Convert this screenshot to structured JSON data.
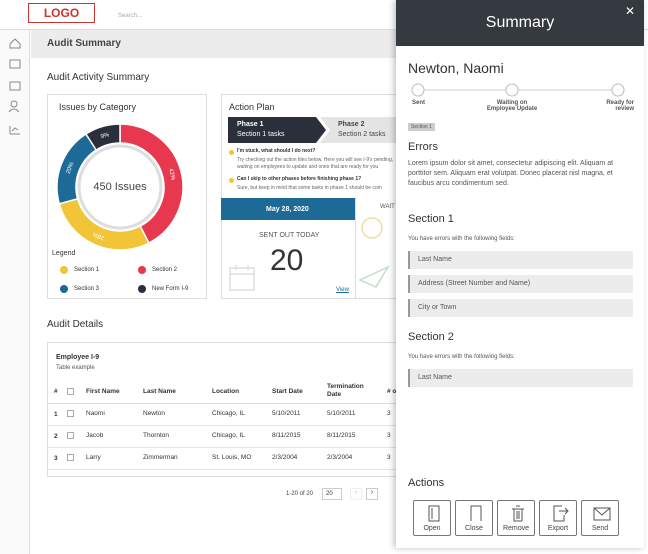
{
  "logo": "LOGO",
  "search_placeholder": "Search...",
  "page_title": "Audit Summary",
  "activity_title": "Audit Activity Summary",
  "chart_data": {
    "type": "pie",
    "title": "Issues by Category",
    "center_label": "450 Issues",
    "legend_title": "Legend",
    "categories": [
      "Section 2",
      "Section 1",
      "Section 3",
      "New Form I-9"
    ],
    "values": [
      42,
      28,
      20,
      9
    ],
    "value_labels": [
      "42%",
      "28%",
      "20%",
      "9%"
    ],
    "colors": [
      "#e8384f",
      "#f2c438",
      "#1d6a96",
      "#2b2f3a"
    ]
  },
  "action_plan": {
    "title": "Action Plan",
    "phases": [
      {
        "name": "Phase 1",
        "tasks": "Section 1 tasks"
      },
      {
        "name": "Phase 2",
        "tasks": "Section 2 tasks"
      }
    ],
    "faq": [
      {
        "q": "I'm stuck, what should I do next?",
        "a": "Try checking out the action tiles below. Here you will see I-9's pending,",
        "a2": "waiting on employees to update and ones that are ready for you"
      },
      {
        "q": "Can I skip to other phases before finishing phase 1?",
        "a": "Sure, but keep in mind that some tasks in phase 1 should be com"
      }
    ],
    "tile": {
      "date": "May 28, 2020",
      "status": "SENT OUT TODAY",
      "count": "20",
      "link": "View"
    },
    "tile2": "WAIT"
  },
  "details": {
    "title": "Audit Details",
    "table_title": "Employee I-9",
    "table_subtitle": "Table example",
    "columns": [
      "#",
      "First Name",
      "Last Name",
      "Location",
      "Start Date",
      "Termination Date",
      "# o"
    ],
    "rows": [
      [
        "1",
        "Naomi",
        "Newton",
        "Chicago, IL",
        "5/10/2011",
        "5/10/2011",
        "3"
      ],
      [
        "2",
        "Jacob",
        "Thornton",
        "Chicago, IL",
        "8/11/2015",
        "8/11/2015",
        "3"
      ],
      [
        "3",
        "Larry",
        "Zimmerman",
        "St. Louis, MO",
        "2/3/2004",
        "2/3/2004",
        "3"
      ]
    ],
    "pagination": "1-20 of 20",
    "page_size": "20"
  },
  "panel": {
    "title": "Summary",
    "name": "Newton, Naomi",
    "steps": [
      "Sent",
      "Waiting on Employee Update",
      "Ready for review"
    ],
    "tag": "Section 1",
    "errors_title": "Errors",
    "errors_text": "Lorem ipsum dolor sit amet, consectetur adipiscing elit. Aliquam at porttitor sem.  Aliquam erat volutpat. Donec placerat nisl magna, et faucibus arcu condimentum sed.",
    "sections": [
      {
        "title": "Section 1",
        "intro": "You have errors with the following fields:",
        "fields": [
          "Last Name",
          "Address (Street Number and Name)",
          "City or Town"
        ]
      },
      {
        "title": "Section 2",
        "intro": "You have errors with the following fields:",
        "fields": [
          "Last Name"
        ]
      }
    ],
    "actions_title": "Actions",
    "actions": [
      "Open",
      "Close",
      "Remove",
      "Export",
      "Send"
    ]
  }
}
